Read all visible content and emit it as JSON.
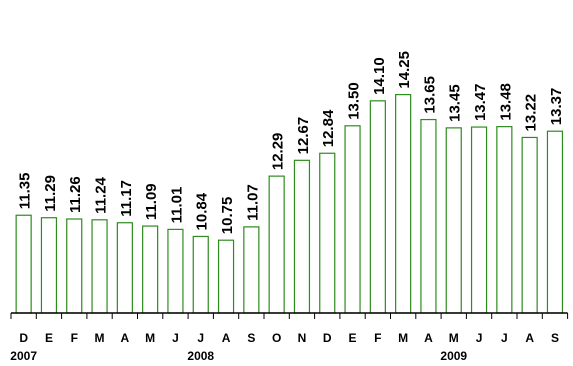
{
  "chart_data": {
    "type": "bar",
    "categories": [
      "D",
      "E",
      "F",
      "M",
      "A",
      "M",
      "J",
      "J",
      "A",
      "S",
      "O",
      "N",
      "D",
      "E",
      "F",
      "M",
      "A",
      "M",
      "J",
      "J",
      "A",
      "S"
    ],
    "values": [
      11.35,
      11.29,
      11.26,
      11.24,
      11.17,
      11.09,
      11.01,
      10.84,
      10.75,
      11.07,
      12.29,
      12.67,
      12.84,
      13.5,
      14.1,
      14.25,
      13.65,
      13.45,
      13.47,
      13.48,
      13.22,
      13.37
    ],
    "value_labels": [
      "11.35",
      "11.29",
      "11.26",
      "11.24",
      "11.17",
      "11.09",
      "11.01",
      "10.84",
      "10.75",
      "11.07",
      "12.29",
      "12.67",
      "12.84",
      "13.50",
      "14.10",
      "14.25",
      "13.65",
      "13.45",
      "13.47",
      "13.48",
      "13.22",
      "13.37"
    ],
    "year_labels": [
      {
        "label": "2007",
        "category_index": 0
      },
      {
        "label": "2008",
        "category_index": 7
      },
      {
        "label": "2009",
        "category_index": 17
      }
    ],
    "title": "",
    "xlabel": "",
    "ylabel": "",
    "ylim": [
      9.0,
      14.5
    ],
    "grid": false,
    "legend": "none",
    "bar_color": "#2e8b1e",
    "bar_fill": "#ffffff"
  }
}
